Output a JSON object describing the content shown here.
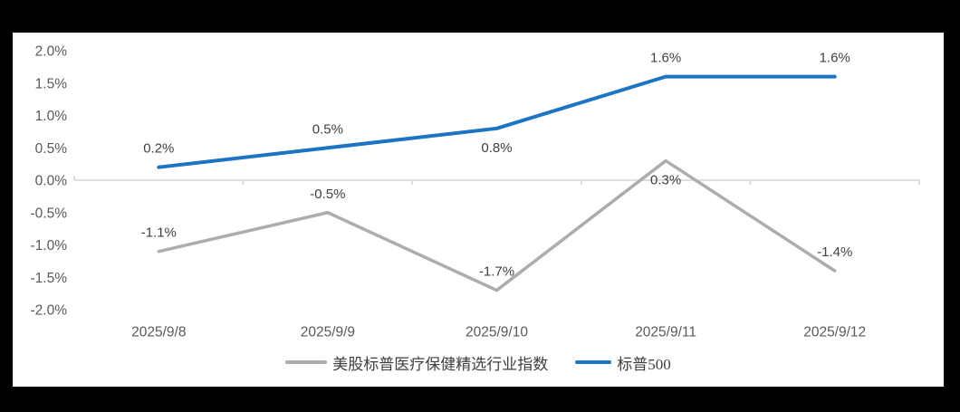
{
  "window": {
    "frame_color": "#000000",
    "chart_background": "#FFFFFF"
  },
  "chart_data": {
    "type": "line",
    "title": "",
    "xlabel": "",
    "ylabel": "",
    "categories": [
      "2025/9/8",
      "2025/9/9",
      "2025/9/10",
      "2025/9/11",
      "2025/9/12"
    ],
    "series": [
      {
        "name": "美股标普医疗保健精选行业指数",
        "color": "#ADADAD",
        "values": [
          -1.1,
          -0.5,
          -1.7,
          0.3,
          -1.4
        ],
        "data_labels": [
          "-1.1%",
          "-0.5%",
          "-1.7%",
          "0.3%",
          "-1.4%"
        ],
        "label_positions": [
          "above",
          "above",
          "above",
          "below",
          "above"
        ]
      },
      {
        "name": "标普500",
        "color": "#1B74C4",
        "values": [
          0.2,
          0.5,
          0.8,
          1.6,
          1.6
        ],
        "data_labels": [
          "0.2%",
          "0.5%",
          "0.8%",
          "1.6%",
          "1.6%"
        ],
        "label_positions": [
          "above",
          "above",
          "below",
          "above",
          "above"
        ]
      }
    ],
    "y_tick_labels": [
      "2.0%",
      "1.5%",
      "1.0%",
      "0.5%",
      "0.0%",
      "-0.5%",
      "-1.0%",
      "-1.5%",
      "-2.0%"
    ],
    "y_tick_values": [
      2.0,
      1.5,
      1.0,
      0.5,
      0.0,
      -0.5,
      -1.0,
      -1.5,
      -2.0
    ],
    "ylim": [
      -2.0,
      2.0
    ],
    "grid": "off",
    "legend_position": "bottom",
    "colors": {
      "axis_line": "#D9D9D9",
      "tick_label": "#595959",
      "data_label": "#404040",
      "legend_text": "#3F3F3F"
    }
  }
}
